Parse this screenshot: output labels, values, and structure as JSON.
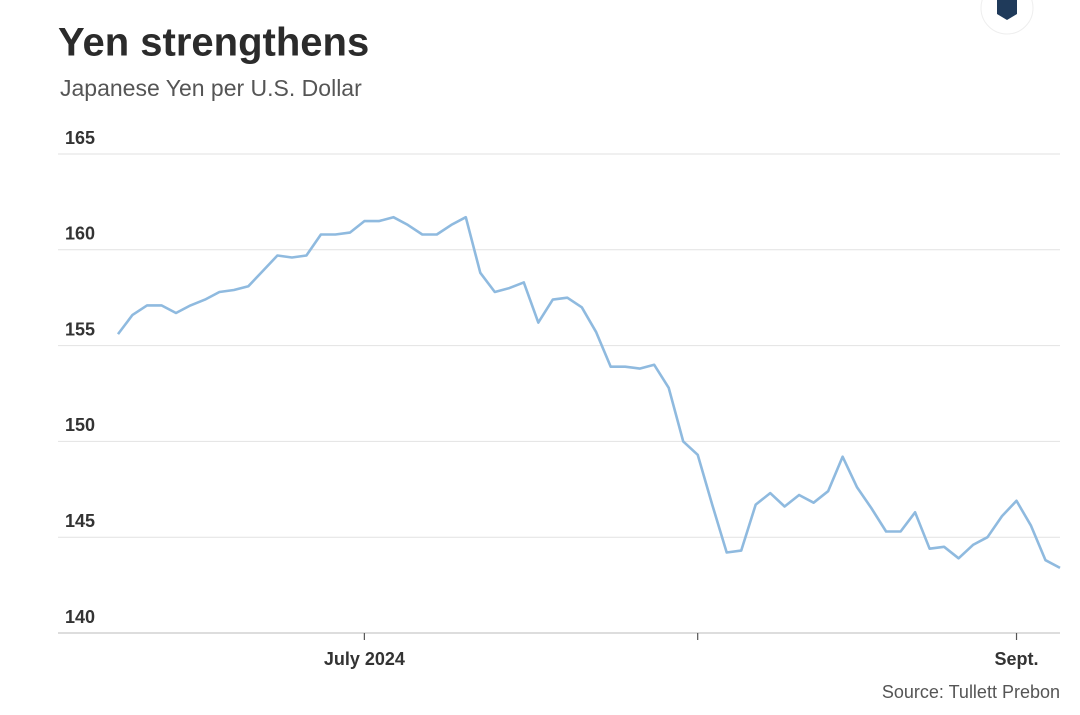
{
  "chart_data": {
    "type": "line",
    "title": "Yen strengthens",
    "subtitle": "Japanese Yen per U.S. Dollar",
    "source": "Source: Tullett Prebon",
    "categories": [
      null,
      null,
      null,
      null,
      null,
      null,
      null,
      null,
      null,
      null,
      null,
      null,
      null,
      null,
      null,
      null,
      null,
      "July 2024",
      null,
      null,
      null,
      null,
      null,
      null,
      null,
      null,
      null,
      null,
      null,
      null,
      null,
      null,
      null,
      null,
      null,
      null,
      null,
      null,
      null,
      null,
      null,
      null,
      null,
      null,
      null,
      null,
      null,
      null,
      null,
      null,
      null,
      null,
      null,
      null,
      null,
      null,
      null,
      null,
      null,
      null,
      null,
      null,
      "Sept.",
      null,
      null,
      null
    ],
    "values": [
      155.6,
      156.6,
      157.1,
      157.1,
      156.7,
      157.1,
      157.4,
      157.8,
      157.9,
      158.1,
      158.9,
      159.7,
      159.6,
      159.7,
      160.8,
      160.8,
      160.9,
      161.5,
      161.5,
      161.7,
      161.3,
      160.8,
      160.8,
      161.3,
      161.7,
      158.8,
      157.8,
      158.0,
      158.3,
      156.2,
      157.4,
      157.5,
      157.0,
      155.7,
      153.9,
      153.9,
      153.8,
      154.0,
      152.8,
      150.0,
      149.3,
      146.7,
      144.2,
      144.3,
      146.7,
      147.3,
      146.6,
      147.2,
      146.8,
      147.4,
      149.2,
      147.6,
      146.5,
      145.3,
      145.3,
      146.3,
      144.4,
      144.5,
      143.9,
      144.6,
      145.0,
      146.1,
      146.9,
      145.6,
      143.8,
      143.4
    ],
    "color": "#8fbadf",
    "xticks": [
      17,
      40,
      62
    ],
    "ylim": [
      140,
      165
    ],
    "yticks": [
      140,
      145,
      150,
      155,
      160,
      165
    ],
    "grid": true
  }
}
